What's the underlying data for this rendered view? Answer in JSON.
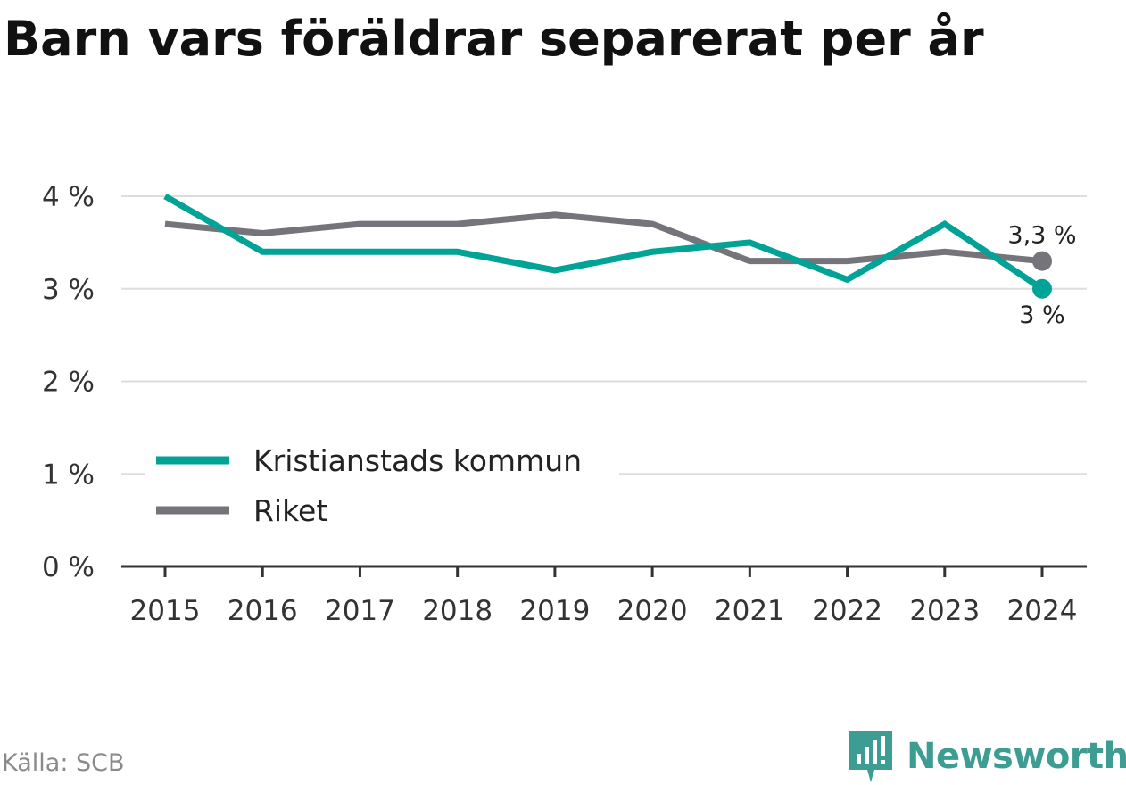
{
  "title": "Barn vars föräldrar separerat per år",
  "source": "Källa: SCB",
  "brand": "Newsworthy",
  "chart_data": {
    "type": "line",
    "x": [
      "2015",
      "2016",
      "2017",
      "2018",
      "2019",
      "2020",
      "2021",
      "2022",
      "2023",
      "2024"
    ],
    "ylim": [
      0,
      4
    ],
    "yticks": [
      0,
      1,
      2,
      3,
      4
    ],
    "ytick_labels": [
      "0 %",
      "1 %",
      "2 %",
      "3 %",
      "4 %"
    ],
    "grid": true,
    "legend_position": "bottom-left",
    "series": [
      {
        "name": "Kristianstads kommun",
        "color": "#00a396",
        "values": [
          4.0,
          3.4,
          3.4,
          3.4,
          3.2,
          3.4,
          3.5,
          3.1,
          3.7,
          3.0
        ],
        "end_label": "3 %",
        "end_label_position": "below"
      },
      {
        "name": "Riket",
        "color": "#75747b",
        "values": [
          3.7,
          3.6,
          3.7,
          3.7,
          3.8,
          3.7,
          3.3,
          3.3,
          3.4,
          3.3
        ],
        "end_label": "3,3 %",
        "end_label_position": "above"
      }
    ]
  }
}
